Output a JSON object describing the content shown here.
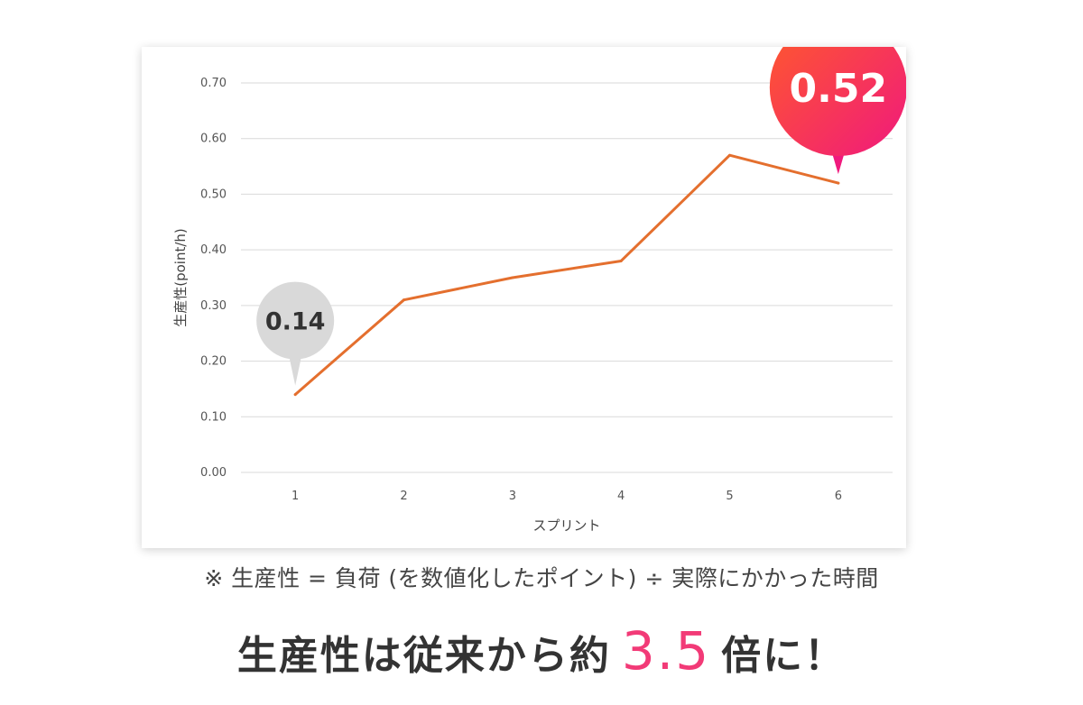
{
  "chart_data": {
    "type": "line",
    "xlabel": "スプリント",
    "ylabel": "生産性(point/h)",
    "categories": [
      "1",
      "2",
      "3",
      "4",
      "5",
      "6"
    ],
    "y_ticks": [
      "0.00",
      "0.10",
      "0.20",
      "0.30",
      "0.40",
      "0.50",
      "0.60",
      "0.70"
    ],
    "ylim": [
      0,
      0.7
    ],
    "grid": true,
    "series": [
      {
        "values": [
          0.14,
          0.31,
          0.35,
          0.38,
          0.57,
          0.52
        ]
      }
    ],
    "line_color": "#e46f2e",
    "callouts": [
      {
        "label": "0.14",
        "index": 0,
        "style": "gray"
      },
      {
        "label": "0.52",
        "index": 5,
        "style": "gradient"
      }
    ],
    "callout_colors": {
      "gray": "#d9d9d9",
      "gradient_start": "#ff5a2b",
      "gradient_end": "#f0197d"
    }
  },
  "footnote": "※ 生産性 = 負荷 (を数値化したポイント) ÷ 実際にかかった時間",
  "headline": {
    "before": "生産性は従来から約",
    "number": "3.5",
    "after": "倍に！"
  }
}
